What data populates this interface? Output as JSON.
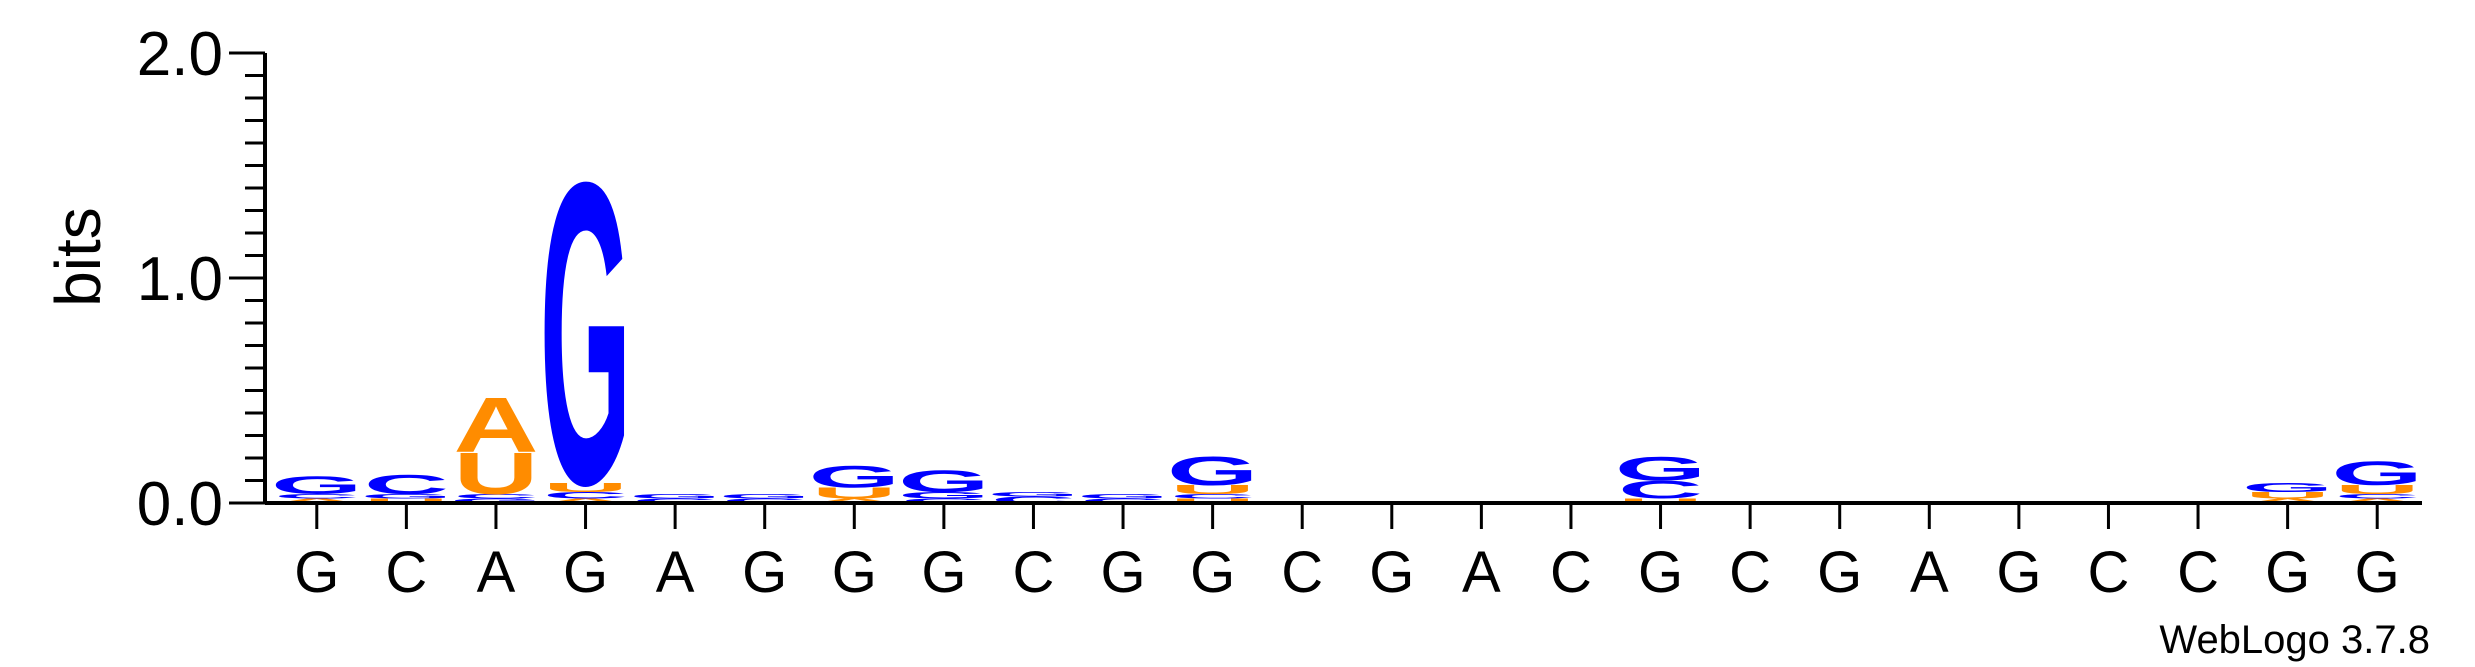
{
  "chart_data": {
    "type": "sequence-logo",
    "ylabel": "bits",
    "ylim": [
      0,
      2.0
    ],
    "yticks": [
      "0.0",
      "1.0",
      "2.0"
    ],
    "consensus": [
      "G",
      "C",
      "A",
      "G",
      "A",
      "G",
      "G",
      "G",
      "C",
      "G",
      "G",
      "C",
      "G",
      "A",
      "C",
      "G",
      "C",
      "G",
      "A",
      "G",
      "C",
      "C",
      "G",
      "G"
    ],
    "colors": {
      "A": "#ff8c00",
      "U": "#ff8c00",
      "G": "#0000ff",
      "C": "#0000ff"
    },
    "positions": [
      [
        [
          "A",
          0.02
        ],
        [
          "C",
          0.02
        ],
        [
          "G",
          0.08
        ]
      ],
      [
        [
          "U",
          0.02
        ],
        [
          "G",
          0.02
        ],
        [
          "C",
          0.09
        ]
      ],
      [
        [
          "G",
          0.02
        ],
        [
          "C",
          0.02
        ],
        [
          "U",
          0.19
        ],
        [
          "A",
          0.25
        ]
      ],
      [
        [
          "A",
          0.02
        ],
        [
          "C",
          0.03
        ],
        [
          "U",
          0.04
        ],
        [
          "G",
          1.38
        ]
      ],
      [
        [
          "C",
          0.02
        ],
        [
          "G",
          0.02
        ]
      ],
      [
        [
          "C",
          0.02
        ],
        [
          "G",
          0.02
        ]
      ],
      [
        [
          "A",
          0.02
        ],
        [
          "U",
          0.05
        ],
        [
          "G",
          0.1
        ]
      ],
      [
        [
          "C",
          0.02
        ],
        [
          "G",
          0.03
        ],
        [
          "G",
          0.1
        ]
      ],
      [
        [
          "C",
          0.03
        ],
        [
          "G",
          0.02
        ]
      ],
      [
        [
          "C",
          0.02
        ],
        [
          "G",
          0.02
        ]
      ],
      [
        [
          "U",
          0.02
        ],
        [
          "C",
          0.02
        ],
        [
          "U",
          0.04
        ],
        [
          "G",
          0.13
        ]
      ],
      [],
      [],
      [],
      [],
      [
        [
          "U",
          0.02
        ],
        [
          "C",
          0.08
        ],
        [
          "G",
          0.11
        ]
      ],
      [],
      [
        [
          "C",
          0.01
        ]
      ],
      [],
      [
        [
          "C",
          0.01
        ]
      ],
      [],
      [],
      [
        [
          "A",
          0.02
        ],
        [
          "U",
          0.03
        ],
        [
          "G",
          0.04
        ]
      ],
      [
        [
          "A",
          0.02
        ],
        [
          "C",
          0.02
        ],
        [
          "U",
          0.04
        ],
        [
          "G",
          0.11
        ]
      ]
    ],
    "credit": "WebLogo 3.7.8"
  }
}
